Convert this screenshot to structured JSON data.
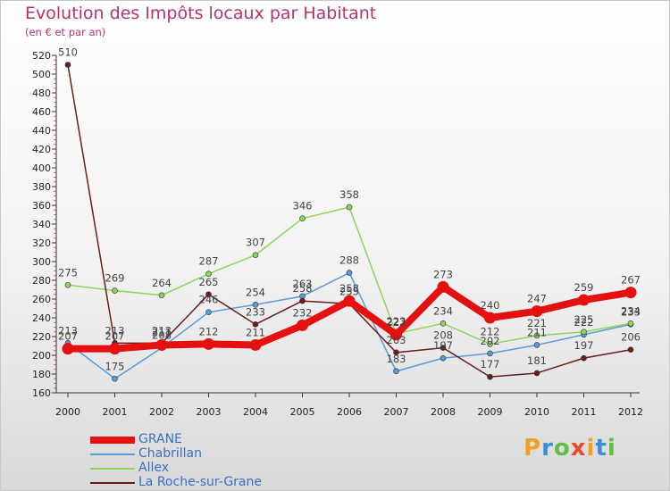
{
  "header": {
    "title": "Evolution des Impôts locaux par Habitant",
    "subtitle": "(en € et par an)"
  },
  "logo": {
    "text": "Proxiti",
    "letters": [
      "P",
      "r",
      "o",
      "x",
      "i",
      "t",
      "i"
    ],
    "colors": [
      "#f0a020",
      "#3a8fd8",
      "#5fbf3f",
      "#e64b2c",
      "#f0a020",
      "#3a8fd8",
      "#5fbf3f"
    ]
  },
  "chart_data": {
    "type": "line",
    "title": "Evolution des Impôts locaux par Habitant",
    "subtitle": "(en € et par an)",
    "x": [
      "2000",
      "2001",
      "2002",
      "2003",
      "2004",
      "2005",
      "2006",
      "2007",
      "2008",
      "2009",
      "2010",
      "2011",
      "2012"
    ],
    "ylim": [
      160,
      520
    ],
    "yticks": [
      160,
      180,
      200,
      220,
      240,
      260,
      280,
      300,
      320,
      340,
      360,
      380,
      400,
      420,
      440,
      460,
      480,
      500,
      520
    ],
    "legend_position": "bottom-left",
    "series": [
      {
        "name": "GRANE",
        "values": [
          207,
          207,
          211,
          212,
          211,
          232,
          258,
          222,
          273,
          240,
          247,
          259,
          267
        ],
        "color": "#e51010",
        "width": 8,
        "marker": 6.5
      },
      {
        "name": "Chabrillan",
        "values": [
          213,
          175,
          208,
          246,
          254,
          263,
          288,
          183,
          197,
          202,
          211,
          222,
          233
        ],
        "color": "#5b9bd5",
        "width": 1.5,
        "marker": 3
      },
      {
        "name": "Allex",
        "values": [
          275,
          269,
          264,
          287,
          307,
          346,
          358,
          223,
          234,
          212,
          221,
          225,
          234
        ],
        "color": "#8cd45c",
        "width": 1.5,
        "marker": 3
      },
      {
        "name": "La Roche-sur-Grane",
        "values": [
          510,
          213,
          213,
          265,
          233,
          258,
          255,
          203,
          208,
          177,
          181,
          197,
          206
        ],
        "color": "#6b1c1c",
        "width": 1.5,
        "marker": 3
      }
    ]
  }
}
